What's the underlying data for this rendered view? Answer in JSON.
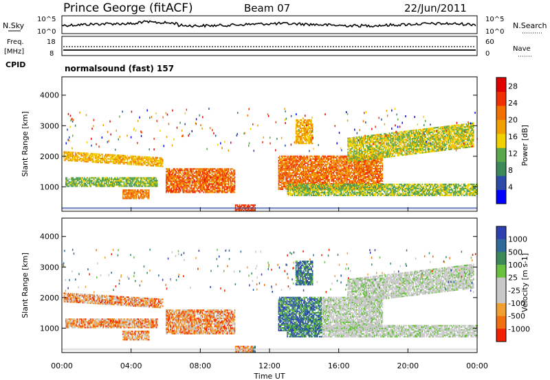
{
  "header": {
    "station": "Prince George (fitACF)",
    "beam": "Beam 07",
    "date": "22/Jun/2011"
  },
  "noise_panel": {
    "left_label": "N.Sky",
    "right_label": "N.Search",
    "left_ticks": [
      "10^5",
      "10^0"
    ],
    "right_ticks": [
      "10^5",
      "10^0"
    ]
  },
  "freq_panel": {
    "left_label_1": "Freq.",
    "left_label_2": "[MHz]",
    "left_ticks": [
      "18",
      "8"
    ],
    "right_label": "Nave",
    "right_ticks": [
      "60",
      "0"
    ]
  },
  "cpid_panel": {
    "label": "CPID",
    "text": "normalsound (fast) 157"
  },
  "colors": {
    "power": [
      "#0000ff",
      "#2e4aa8",
      "#3a8a5a",
      "#5aa84a",
      "#f0d000",
      "#f0a000",
      "#f07000",
      "#f03000",
      "#e00000"
    ],
    "velocity": [
      "#2e3fb0",
      "#2e6a9a",
      "#3a8a5a",
      "#6ac040",
      "#c8c8c8",
      "#c8c8c8",
      "#f0a030",
      "#f07010",
      "#f02000"
    ]
  },
  "chart_data": [
    {
      "type": "heatmap",
      "name": "Power",
      "ylabel": "Slant Range [km]",
      "y_ticks": [
        "1000",
        "2000",
        "3000",
        "4000"
      ],
      "ylim": [
        200,
        4600
      ],
      "xlim": [
        0,
        24
      ],
      "colorbar_label": "Power [dB]",
      "colorbar_ticks": [
        "4",
        "8",
        "12",
        "16",
        "20",
        "24",
        "28"
      ],
      "colorbar_range": [
        0,
        30
      ]
    },
    {
      "type": "heatmap",
      "name": "Velocity",
      "ylabel": "Slant Range [km]",
      "y_ticks": [
        "1000",
        "2000",
        "3000",
        "4000"
      ],
      "ylim": [
        200,
        4600
      ],
      "xlim": [
        0,
        24
      ],
      "colorbar_label": "Velocity [m s-1]",
      "colorbar_ticks": [
        "1000",
        "500",
        "100",
        "25",
        "-25",
        "-100",
        "-500",
        "-1000"
      ]
    }
  ],
  "x_axis": {
    "ticks": [
      "00:00",
      "04:00",
      "08:00",
      "12:00",
      "16:00",
      "20:00",
      "00:00"
    ],
    "label": "Time UT"
  }
}
